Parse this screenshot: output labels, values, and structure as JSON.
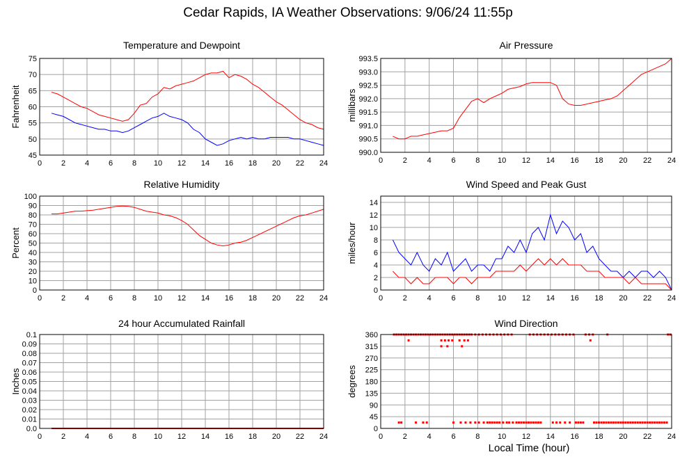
{
  "title": "Cedar Rapids, IA Weather Observations: 9/06/24 11:55p",
  "xlabel": "Local Time (hour)",
  "colors": {
    "red": "#ff0000",
    "blue": "#0000ff",
    "grid": "#a0a0a0"
  },
  "chart_data": [
    {
      "id": "temp",
      "type": "line",
      "title": "Temperature and Dewpoint",
      "ylabel": "Fahrenheit",
      "xlim": [
        0,
        24
      ],
      "ylim": [
        45,
        75
      ],
      "xticks": [
        0,
        2,
        4,
        6,
        8,
        10,
        12,
        14,
        16,
        18,
        20,
        22,
        24
      ],
      "yticks": [
        45,
        50,
        55,
        60,
        65,
        70,
        75
      ],
      "series": [
        {
          "color": "#ff0000",
          "x": [
            1,
            1.5,
            2,
            2.5,
            3,
            3.5,
            4,
            4.5,
            5,
            5.5,
            6,
            6.5,
            7,
            7.5,
            8,
            8.5,
            9,
            9.5,
            10,
            10.5,
            11,
            11.5,
            12,
            12.5,
            13,
            13.5,
            14,
            14.5,
            15,
            15.5,
            16,
            16.5,
            17,
            17.5,
            18,
            18.5,
            19,
            19.5,
            20,
            20.5,
            21,
            21.5,
            22,
            22.5,
            23,
            23.5,
            24
          ],
          "y": [
            64.5,
            64,
            63,
            62,
            61,
            60,
            59.5,
            58.5,
            57.5,
            57,
            56.5,
            56,
            55.5,
            56,
            58,
            60.5,
            61,
            63,
            64,
            66,
            65.5,
            66.5,
            67,
            67.5,
            68,
            69,
            70,
            70.5,
            70.5,
            71,
            69,
            70,
            69.5,
            68.5,
            67,
            66,
            64.5,
            63,
            61.5,
            60.5,
            59,
            57.5,
            56,
            55,
            54.5,
            53.5,
            53
          ]
        },
        {
          "color": "#0000ff",
          "x": [
            1,
            1.5,
            2,
            2.5,
            3,
            3.5,
            4,
            4.5,
            5,
            5.5,
            6,
            6.5,
            7,
            7.5,
            8,
            8.5,
            9,
            9.5,
            10,
            10.5,
            11,
            11.5,
            12,
            12.5,
            13,
            13.5,
            14,
            14.5,
            15,
            15.5,
            16,
            16.5,
            17,
            17.5,
            18,
            18.5,
            19,
            19.5,
            20,
            20.5,
            21,
            21.5,
            22,
            22.5,
            23,
            23.5,
            24
          ],
          "y": [
            58,
            57.5,
            57,
            56,
            55,
            54.5,
            54,
            53.5,
            53,
            53,
            52.5,
            52.5,
            52,
            52.5,
            53.5,
            54.5,
            55.5,
            56.5,
            57,
            58,
            57,
            56.5,
            56,
            55,
            53,
            52,
            50,
            49,
            48,
            48.5,
            49.5,
            50,
            50.5,
            50,
            50.5,
            50,
            50,
            50.5,
            50.5,
            50.5,
            50.5,
            50,
            50,
            49.5,
            49,
            48.5,
            48
          ]
        }
      ]
    },
    {
      "id": "pressure",
      "type": "line",
      "title": "Air Pressure",
      "ylabel": "millibars",
      "xlim": [
        0,
        24
      ],
      "ylim": [
        990.0,
        993.5
      ],
      "xticks": [
        0,
        2,
        4,
        6,
        8,
        10,
        12,
        14,
        16,
        18,
        20,
        22,
        24
      ],
      "yticks": [
        990.0,
        990.5,
        991.0,
        991.5,
        992.0,
        992.5,
        993.0,
        993.5
      ],
      "ytick_labels": [
        "990.0",
        "990.5",
        "991.0",
        "991.5",
        "992.0",
        "992.5",
        "993.0",
        "993.5"
      ],
      "series": [
        {
          "color": "#ff0000",
          "x": [
            1,
            1.5,
            2,
            2.5,
            3,
            3.5,
            4,
            4.5,
            5,
            5.5,
            6,
            6.5,
            7,
            7.5,
            8,
            8.5,
            9,
            9.5,
            10,
            10.5,
            11,
            11.5,
            12,
            12.5,
            13,
            13.5,
            14,
            14.5,
            15,
            15.5,
            16,
            16.5,
            17,
            17.5,
            18,
            18.5,
            19,
            19.5,
            20,
            20.5,
            21,
            21.5,
            22,
            22.5,
            23,
            23.5,
            24
          ],
          "y": [
            990.6,
            990.5,
            990.5,
            990.6,
            990.6,
            990.65,
            990.7,
            990.75,
            990.8,
            990.8,
            990.9,
            991.3,
            991.6,
            991.9,
            992.0,
            991.85,
            992.0,
            992.1,
            992.2,
            992.35,
            992.4,
            992.45,
            992.55,
            992.6,
            992.6,
            992.6,
            992.6,
            992.5,
            992.0,
            991.8,
            991.75,
            991.75,
            991.8,
            991.85,
            991.9,
            991.95,
            992.0,
            992.1,
            992.3,
            992.5,
            992.7,
            992.9,
            993.0,
            993.1,
            993.2,
            993.3,
            993.5
          ]
        }
      ]
    },
    {
      "id": "humidity",
      "type": "line",
      "title": "Relative Humidity",
      "ylabel": "Percent",
      "xlim": [
        0,
        24
      ],
      "ylim": [
        0,
        100
      ],
      "xticks": [
        0,
        2,
        4,
        6,
        8,
        10,
        12,
        14,
        16,
        18,
        20,
        22,
        24
      ],
      "yticks": [
        0,
        10,
        20,
        30,
        40,
        50,
        60,
        70,
        80,
        90,
        100
      ],
      "series": [
        {
          "color": "#ff0000",
          "x": [
            1,
            1.5,
            2,
            2.5,
            3,
            3.5,
            4,
            4.5,
            5,
            5.5,
            6,
            6.5,
            7,
            7.5,
            8,
            8.5,
            9,
            9.5,
            10,
            10.5,
            11,
            11.5,
            12,
            12.5,
            13,
            13.5,
            14,
            14.5,
            15,
            15.5,
            16,
            16.5,
            17,
            17.5,
            18,
            18.5,
            19,
            19.5,
            20,
            20.5,
            21,
            21.5,
            22,
            22.5,
            23,
            23.5,
            24
          ],
          "y": [
            81,
            81,
            82,
            83,
            84,
            84,
            84.5,
            85,
            86,
            87,
            88,
            89,
            89.5,
            89,
            88,
            86,
            84,
            83,
            82,
            80,
            79,
            77,
            74,
            70,
            64,
            58,
            54,
            50,
            48,
            47,
            48,
            50,
            51,
            53,
            56,
            59,
            62,
            65,
            68,
            71,
            74,
            77,
            79,
            80,
            82,
            84,
            86
          ]
        }
      ]
    },
    {
      "id": "wind",
      "type": "line",
      "title": "Wind Speed and Peak Gust",
      "ylabel": "miles/hour",
      "xlim": [
        0,
        24
      ],
      "ylim": [
        0,
        15
      ],
      "xticks": [
        0,
        2,
        4,
        6,
        8,
        10,
        12,
        14,
        16,
        18,
        20,
        22,
        24
      ],
      "yticks": [
        0,
        2,
        4,
        6,
        8,
        10,
        12,
        14
      ],
      "series": [
        {
          "color": "#0000ff",
          "x": [
            1,
            1.5,
            2,
            2.5,
            3,
            3.5,
            4,
            4.5,
            5,
            5.5,
            6,
            6.5,
            7,
            7.5,
            8,
            8.5,
            9,
            9.5,
            10,
            10.5,
            11,
            11.5,
            12,
            12.5,
            13,
            13.5,
            14,
            14.5,
            15,
            15.5,
            16,
            16.5,
            17,
            17.5,
            18,
            18.5,
            19,
            19.5,
            20,
            20.5,
            21,
            21.5,
            22,
            22.5,
            23,
            23.5,
            24
          ],
          "y": [
            8,
            6,
            5,
            4,
            6,
            4,
            3,
            5,
            4,
            6,
            3,
            4,
            5,
            3,
            4,
            4,
            3,
            5,
            5,
            7,
            6,
            8,
            6,
            9,
            10,
            8,
            12,
            9,
            11,
            10,
            8,
            9,
            6,
            7,
            5,
            4,
            3,
            3,
            2,
            3,
            2,
            3,
            3,
            2,
            3,
            2,
            0
          ]
        },
        {
          "color": "#ff0000",
          "x": [
            1,
            1.5,
            2,
            2.5,
            3,
            3.5,
            4,
            4.5,
            5,
            5.5,
            6,
            6.5,
            7,
            7.5,
            8,
            8.5,
            9,
            9.5,
            10,
            10.5,
            11,
            11.5,
            12,
            12.5,
            13,
            13.5,
            14,
            14.5,
            15,
            15.5,
            16,
            16.5,
            17,
            17.5,
            18,
            18.5,
            19,
            19.5,
            20,
            20.5,
            21,
            21.5,
            22,
            22.5,
            23,
            23.5,
            24
          ],
          "y": [
            3,
            2,
            2,
            1,
            2,
            1,
            1,
            2,
            2,
            2,
            1,
            2,
            2,
            1,
            2,
            2,
            2,
            3,
            3,
            3,
            3,
            4,
            3,
            4,
            5,
            4,
            5,
            4,
            5,
            4,
            4,
            4,
            3,
            3,
            3,
            2,
            2,
            2,
            2,
            1,
            2,
            1,
            1,
            1,
            1,
            1,
            0
          ]
        }
      ]
    },
    {
      "id": "rain",
      "type": "line",
      "title": "24 hour Accumulated Rainfall",
      "ylabel": "Inches",
      "xlim": [
        0,
        24
      ],
      "ylim": [
        0,
        0.1
      ],
      "xticks": [
        0,
        2,
        4,
        6,
        8,
        10,
        12,
        14,
        16,
        18,
        20,
        22,
        24
      ],
      "yticks": [
        0,
        0.01,
        0.02,
        0.03,
        0.04,
        0.05,
        0.06,
        0.07,
        0.08,
        0.09,
        0.1
      ],
      "ytick_labels": [
        "0.0",
        "0.01",
        "0.02",
        "0.03",
        "0.04",
        "0.05",
        "0.06",
        "0.07",
        "0.08",
        "0.09",
        "0.1"
      ],
      "series": [
        {
          "color": "#ff0000",
          "x": [
            1,
            24
          ],
          "y": [
            0,
            0
          ]
        }
      ]
    },
    {
      "id": "winddir",
      "type": "scatter",
      "title": "Wind Direction",
      "ylabel": "degrees",
      "xlim": [
        0,
        24
      ],
      "ylim": [
        0,
        360
      ],
      "xticks": [
        0,
        2,
        4,
        6,
        8,
        10,
        12,
        14,
        16,
        18,
        20,
        22,
        24
      ],
      "yticks": [
        0,
        45,
        90,
        135,
        180,
        225,
        270,
        315,
        360
      ],
      "series": [
        {
          "color": "#ff0000",
          "x": [
            1.1,
            1.3,
            1.5,
            1.7,
            1.9,
            2.1,
            2.3,
            2.5,
            2.7,
            2.9,
            3.1,
            3.3,
            3.5,
            3.7,
            3.9,
            4.1,
            4.3,
            4.5,
            4.7,
            4.9,
            5.1,
            5.3,
            5.5,
            5.7,
            5.9,
            6.1,
            6.3,
            6.5,
            6.7,
            6.9,
            7.1,
            7.3,
            7.5,
            7.8,
            8.1,
            8.4,
            8.7,
            9.0,
            9.3,
            9.6,
            9.9,
            10.2,
            10.5,
            10.8,
            12.3,
            12.6,
            12.9,
            13.2,
            13.5,
            13.8,
            14.1,
            14.4,
            14.7,
            15.0,
            15.3,
            15.6,
            15.9,
            16.9,
            17.2,
            17.5,
            18.7,
            23.7,
            23.9,
            2.3,
            5.0,
            5.3,
            5.6,
            5.9,
            6.5,
            6.9,
            7.2,
            17.3,
            5.0,
            5.5,
            6.7,
            1.5,
            1.7,
            2.9,
            3.5,
            3.8,
            6.0,
            6.6,
            7.0,
            7.4,
            7.8,
            8.1,
            8.5,
            8.8,
            9.0,
            9.2,
            9.4,
            9.6,
            9.8,
            10.1,
            10.4,
            10.6,
            10.9,
            11.2,
            11.4,
            11.6,
            11.8,
            12.0,
            12.2,
            12.4,
            12.6,
            12.8,
            13.0,
            13.2,
            14.2,
            14.5,
            14.8,
            15.2,
            15.6,
            16.1,
            16.3,
            16.5,
            16.7,
            17.6,
            17.8,
            18.0,
            18.2,
            18.4,
            18.6,
            18.8,
            19.0,
            19.2,
            19.4,
            19.6,
            19.8,
            20.0,
            20.2,
            20.4,
            20.6,
            20.8,
            21.0,
            21.2,
            21.4,
            21.6,
            21.8,
            22.0,
            22.2,
            22.4,
            22.6,
            22.8,
            23.0,
            23.2,
            23.4,
            23.6
          ],
          "y": [
            360,
            360,
            360,
            360,
            360,
            360,
            360,
            360,
            360,
            360,
            360,
            360,
            360,
            360,
            360,
            360,
            360,
            360,
            360,
            360,
            360,
            360,
            360,
            360,
            360,
            360,
            360,
            360,
            360,
            360,
            360,
            360,
            360,
            360,
            360,
            360,
            360,
            360,
            360,
            360,
            360,
            360,
            360,
            360,
            360,
            360,
            360,
            360,
            360,
            360,
            360,
            360,
            360,
            360,
            360,
            360,
            360,
            360,
            360,
            360,
            360,
            360,
            360,
            337.5,
            337.5,
            337.5,
            337.5,
            337.5,
            337.5,
            337.5,
            337.5,
            337.5,
            315,
            315,
            315,
            22.5,
            22.5,
            22.5,
            22.5,
            22.5,
            22.5,
            22.5,
            22.5,
            22.5,
            22.5,
            22.5,
            22.5,
            22.5,
            22.5,
            22.5,
            22.5,
            22.5,
            22.5,
            22.5,
            22.5,
            22.5,
            22.5,
            22.5,
            22.5,
            22.5,
            22.5,
            22.5,
            22.5,
            22.5,
            22.5,
            22.5,
            22.5,
            22.5,
            22.5,
            22.5,
            22.5,
            22.5,
            22.5,
            22.5,
            22.5,
            22.5,
            22.5,
            22.5,
            22.5,
            22.5,
            22.5,
            22.5,
            22.5,
            22.5,
            22.5,
            22.5,
            22.5,
            22.5,
            22.5,
            22.5,
            22.5,
            22.5,
            22.5,
            22.5,
            22.5,
            22.5,
            22.5,
            22.5,
            22.5,
            22.5,
            22.5,
            22.5,
            22.5,
            22.5,
            22.5,
            22.5,
            22.5,
            22.5
          ]
        }
      ]
    }
  ]
}
